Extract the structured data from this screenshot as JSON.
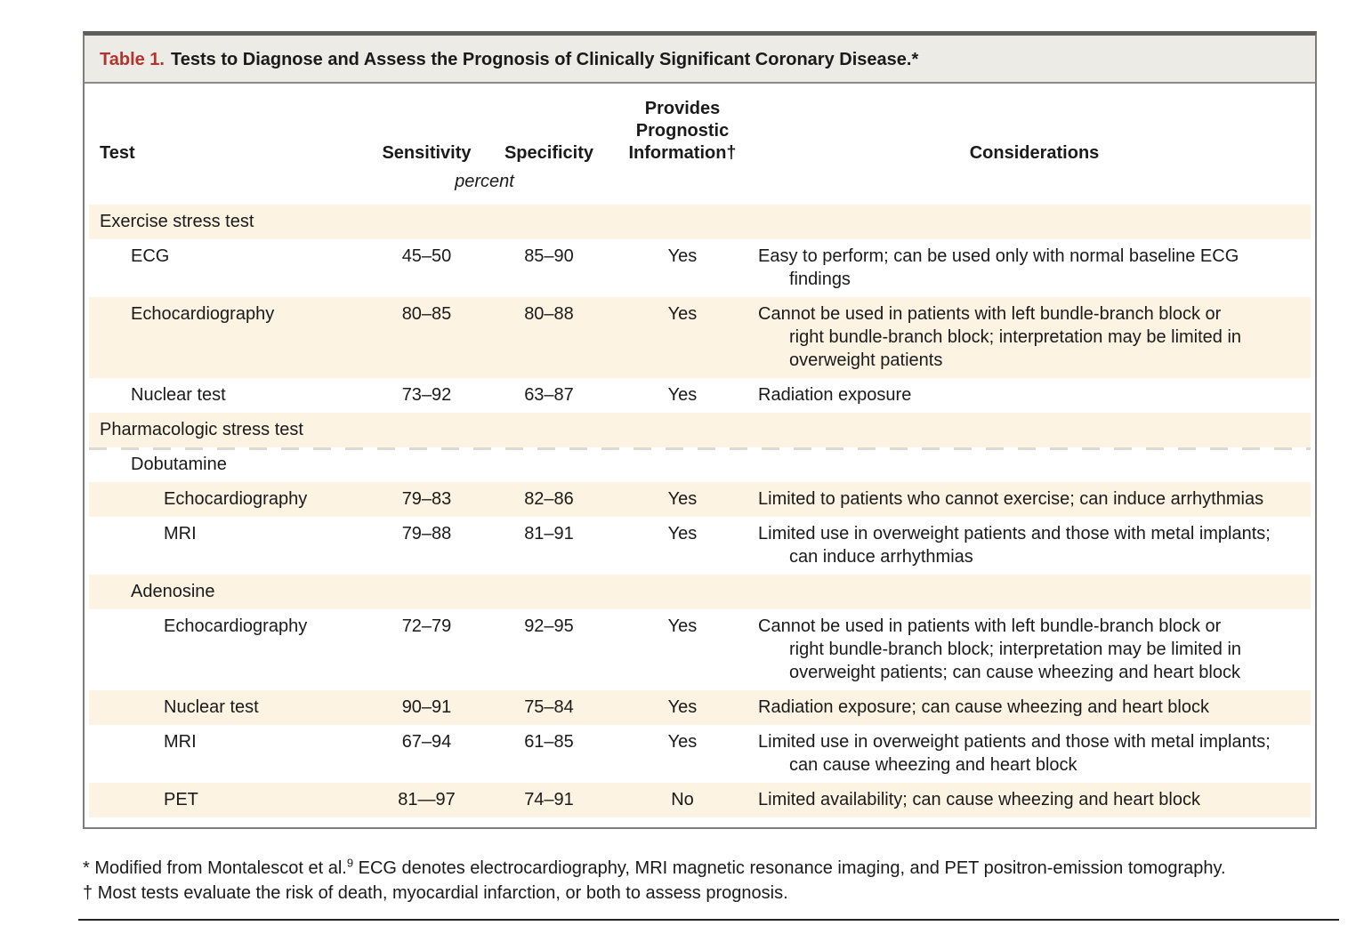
{
  "table": {
    "label": "Table 1.",
    "title": "Tests to Diagnose and Assess the Prognosis of Clinically Significant Coronary Disease.*",
    "columns": {
      "test": "Test",
      "sensitivity": "Sensitivity",
      "specificity": "Specificity",
      "prognostic": "Provides Prognostic Information†",
      "considerations": "Considerations"
    },
    "unit_note": "percent",
    "rows": [
      {
        "label": "Exercise stress test",
        "indent": 0,
        "bg": "cream",
        "sensitivity": "",
        "specificity": "",
        "prognostic": "",
        "considerations": []
      },
      {
        "label": "ECG",
        "indent": 1,
        "bg": "white",
        "sensitivity": "45–50",
        "specificity": "85–90",
        "prognostic": "Yes",
        "considerations": [
          "Easy to perform; can be used only with normal baseline ECG",
          "findings"
        ]
      },
      {
        "label": "Echocardiography",
        "indent": 1,
        "bg": "cream",
        "sensitivity": "80–85",
        "specificity": "80–88",
        "prognostic": "Yes",
        "considerations": [
          "Cannot be used in patients with left bundle-branch block or",
          "right bundle-branch block; interpretation may be limited in",
          "overweight patients"
        ]
      },
      {
        "label": "Nuclear test",
        "indent": 1,
        "bg": "white",
        "sensitivity": "73–92",
        "specificity": "63–87",
        "prognostic": "Yes",
        "considerations": [
          "Radiation exposure"
        ]
      },
      {
        "label": "Pharmacologic stress test",
        "indent": 0,
        "bg": "cream",
        "sensitivity": "",
        "specificity": "",
        "prognostic": "",
        "considerations": []
      },
      {
        "label": "Dobutamine",
        "indent": 1,
        "bg": "white",
        "dashed": true,
        "sensitivity": "",
        "specificity": "",
        "prognostic": "",
        "considerations": []
      },
      {
        "label": "Echocardiography",
        "indent": 2,
        "bg": "cream",
        "sensitivity": "79–83",
        "specificity": "82–86",
        "prognostic": "Yes",
        "considerations": [
          "Limited to patients who cannot exercise; can induce arrhythmias"
        ]
      },
      {
        "label": "MRI",
        "indent": 2,
        "bg": "white",
        "sensitivity": "79–88",
        "specificity": "81–91",
        "prognostic": "Yes",
        "considerations": [
          "Limited use in overweight patients and those with metal implants;",
          "can induce arrhythmias"
        ]
      },
      {
        "label": "Adenosine",
        "indent": 1,
        "bg": "cream",
        "sensitivity": "",
        "specificity": "",
        "prognostic": "",
        "considerations": []
      },
      {
        "label": "Echocardiography",
        "indent": 2,
        "bg": "white",
        "sensitivity": "72–79",
        "specificity": "92–95",
        "prognostic": "Yes",
        "considerations": [
          "Cannot be used in patients with left bundle-branch block or",
          "right bundle-branch block; interpretation may be limited in",
          "overweight patients; can cause wheezing and heart block"
        ]
      },
      {
        "label": "Nuclear test",
        "indent": 2,
        "bg": "cream",
        "sensitivity": "90–91",
        "specificity": "75–84",
        "prognostic": "Yes",
        "considerations": [
          "Radiation exposure; can cause wheezing and heart block"
        ]
      },
      {
        "label": "MRI",
        "indent": 2,
        "bg": "white",
        "sensitivity": "67–94",
        "specificity": "61–85",
        "prognostic": "Yes",
        "considerations": [
          "Limited use in overweight patients and those with metal implants;",
          "can cause wheezing and heart block"
        ]
      },
      {
        "label": "PET",
        "indent": 2,
        "bg": "cream",
        "sensitivity": "81—97",
        "specificity": "74–91",
        "prognostic": "No",
        "considerations": [
          "Limited availability; can cause wheezing and heart block"
        ]
      }
    ]
  },
  "footnotes": {
    "fn1_marker": "*",
    "fn1_pre": "Modified from Montalescot et al.",
    "fn1_sup": "9",
    "fn1_post": " ECG denotes electrocardiography, MRI magnetic resonance imaging, and PET positron-emission tomography.",
    "fn2_marker": "†",
    "fn2_text": "Most tests evaluate the risk of death, myocardial infarction, or both to assess prognosis."
  },
  "colors": {
    "accent_red": "#b5332f",
    "band_cream": "#fcf3e3",
    "title_bar_gray": "#edebe6",
    "border_gray": "#7d7d7b",
    "rule_black": "#222222"
  }
}
